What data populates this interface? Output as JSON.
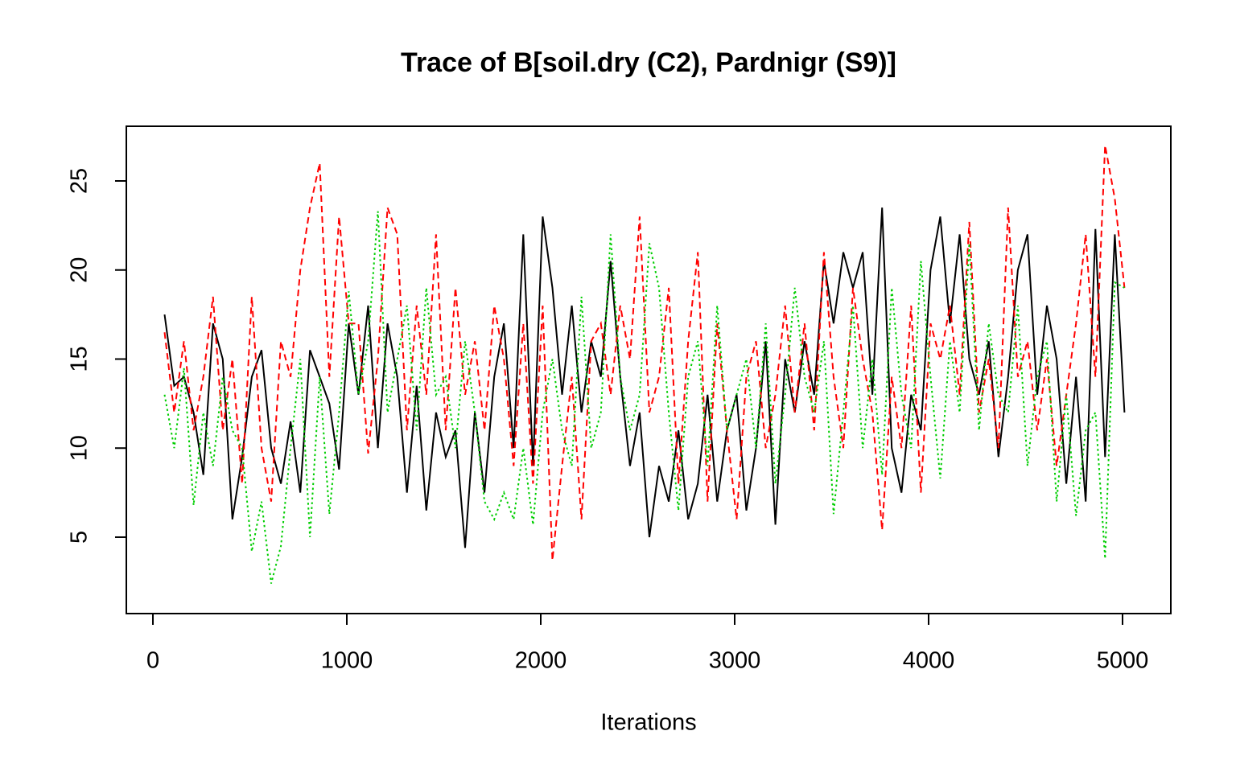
{
  "chart_data": {
    "type": "line",
    "title": "Trace of B[soil.dry (C2), Pardnigr (S9)]",
    "x_label": "Iterations",
    "x": [
      60,
      110,
      160,
      210,
      260,
      310,
      360,
      410,
      460,
      510,
      560,
      610,
      660,
      710,
      760,
      810,
      860,
      910,
      960,
      1010,
      1060,
      1110,
      1160,
      1210,
      1260,
      1310,
      1360,
      1410,
      1460,
      1510,
      1560,
      1610,
      1660,
      1710,
      1760,
      1810,
      1860,
      1910,
      1960,
      2010,
      2060,
      2110,
      2160,
      2210,
      2260,
      2310,
      2360,
      2410,
      2460,
      2510,
      2560,
      2610,
      2660,
      2710,
      2760,
      2810,
      2860,
      2910,
      2960,
      3010,
      3060,
      3110,
      3160,
      3210,
      3260,
      3310,
      3360,
      3410,
      3460,
      3510,
      3560,
      3610,
      3660,
      3710,
      3760,
      3810,
      3860,
      3910,
      3960,
      4010,
      4060,
      4110,
      4160,
      4210,
      4260,
      4310,
      4360,
      4410,
      4460,
      4510,
      4560,
      4610,
      4660,
      4710,
      4760,
      4810,
      4860,
      4910,
      4960,
      5010
    ],
    "series": [
      {
        "color": "#000000",
        "linestyle": "solid",
        "values": [
          17.5,
          13.5,
          14,
          12,
          8.5,
          17,
          15,
          6,
          9.5,
          14,
          15.5,
          10,
          8,
          11.5,
          7.5,
          15.5,
          14,
          12.5,
          8.8,
          17,
          13,
          18,
          10,
          17,
          14,
          7.5,
          13.5,
          6.5,
          12,
          9.5,
          11,
          4.4,
          12,
          7.5,
          14,
          17,
          10,
          22,
          9,
          23,
          19,
          13,
          18,
          12,
          16,
          14,
          20.5,
          14,
          9,
          12,
          5,
          9,
          7,
          11,
          6,
          8,
          13,
          7,
          11,
          13,
          6.5,
          10,
          16,
          5.7,
          15,
          12,
          16,
          13,
          20.5,
          17,
          21,
          19,
          21,
          13,
          23.5,
          10,
          7.5,
          13,
          11,
          20,
          23,
          17,
          22,
          15,
          13,
          16,
          9.5,
          14,
          20,
          22,
          13,
          18,
          15,
          8,
          14,
          7,
          22.3,
          9.5,
          22,
          12
        ]
      },
      {
        "color": "#ff0000",
        "linestyle": "dashed",
        "values": [
          16.5,
          12,
          16,
          11,
          14,
          18.5,
          11,
          15,
          8,
          18.5,
          10,
          7,
          16,
          14,
          20,
          23.5,
          26,
          14,
          23,
          17,
          17,
          9.7,
          15,
          23.5,
          22,
          11,
          18,
          13,
          22,
          11,
          19,
          13,
          16,
          11,
          18,
          15,
          9,
          17,
          8,
          18,
          3.7,
          9,
          14,
          6,
          16,
          17,
          13,
          18,
          15,
          23,
          12,
          14,
          19,
          8,
          16,
          21,
          7,
          17,
          11,
          6,
          14,
          16,
          10,
          13,
          18,
          12,
          17,
          11,
          21,
          14,
          10,
          19,
          15,
          12,
          5.4,
          14,
          10,
          18,
          7.5,
          17,
          15,
          18,
          13,
          22.7,
          12,
          15,
          10,
          23.5,
          14,
          16,
          11,
          15,
          9,
          13,
          17,
          22,
          14,
          27,
          24,
          19
        ]
      },
      {
        "color": "#00cd00",
        "linestyle": "dotted",
        "values": [
          13,
          10,
          14.5,
          6.8,
          12,
          9,
          14,
          11,
          10,
          4.2,
          7,
          2.4,
          4.5,
          10,
          15,
          5,
          14,
          6.3,
          12,
          18.8,
          13,
          16,
          23.3,
          12,
          15,
          18,
          11,
          19,
          13,
          14,
          10,
          16,
          12,
          7,
          6,
          7.5,
          6,
          10,
          5.7,
          12,
          15,
          11,
          9,
          18.5,
          10,
          12,
          22,
          14,
          11,
          13,
          21.5,
          19,
          12,
          6.5,
          14,
          16,
          9,
          18,
          11,
          13,
          15,
          10,
          17,
          8,
          13,
          19,
          14,
          12,
          16,
          6.3,
          12,
          18,
          10,
          15,
          8.5,
          19,
          13,
          10,
          20.5,
          14,
          8.3,
          16,
          12,
          21.5,
          11,
          17,
          13,
          12,
          18,
          9,
          14,
          16,
          7,
          13,
          6.2,
          11,
          12,
          3.8,
          19.3,
          19
        ]
      }
    ],
    "xlim": [
      -137,
      5249
    ],
    "xticks": [
      0,
      1000,
      2000,
      3000,
      4000,
      5000
    ],
    "ylim": [
      0.71,
      28.07
    ],
    "yticks": [
      5,
      10,
      15,
      20,
      25
    ]
  }
}
